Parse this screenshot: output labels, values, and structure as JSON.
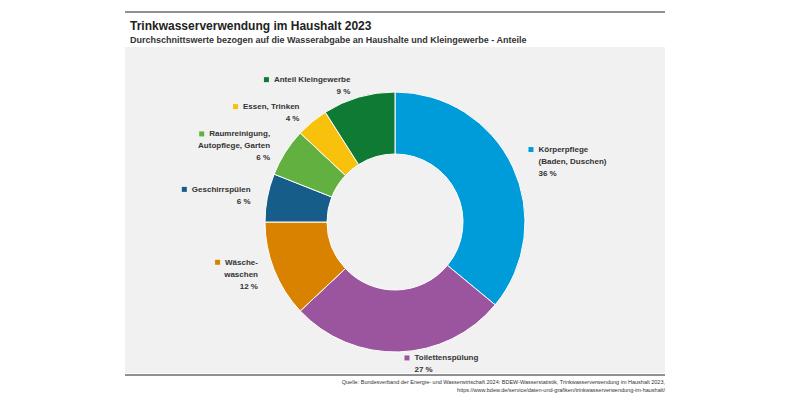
{
  "chart_data": {
    "type": "pie",
    "title": "Trinkwasserverwendung im Haushalt 2023",
    "subtitle": "Durchschnittswerte bezogen auf die Wasserabgabe an Haushalte und Kleingewerbe - Anteile",
    "source": "Quelle: Bundesverband der Energie- und Wasserwirtschaft 2024: BDEW-Wasserstatistik, Trinkwasserverwendung im Haushalt 2023,\nhttps://www.bdew.de/service/daten-und-grafiken/trinkwasserverwendung-im-haushalt/",
    "categories": [
      "Körperpflege\n(Baden, Duschen)",
      "Toilettenspülung",
      "Wäsche-\nwaschen",
      "Geschirrspülen",
      "Raumreinigung,\nAutopflege, Garten",
      "Essen, Trinken",
      "Anteil Kleingewerbe"
    ],
    "values": [
      36,
      27,
      12,
      6,
      6,
      4,
      9
    ],
    "value_labels": [
      "36 %",
      "27 %",
      "12 %",
      "6 %",
      "6 %",
      "4 %",
      "9 %"
    ],
    "colors": [
      "#009bd9",
      "#9b559f",
      "#d98200",
      "#165d8a",
      "#62b03f",
      "#f8c10c",
      "#0f7a34"
    ],
    "data_labels": true
  }
}
